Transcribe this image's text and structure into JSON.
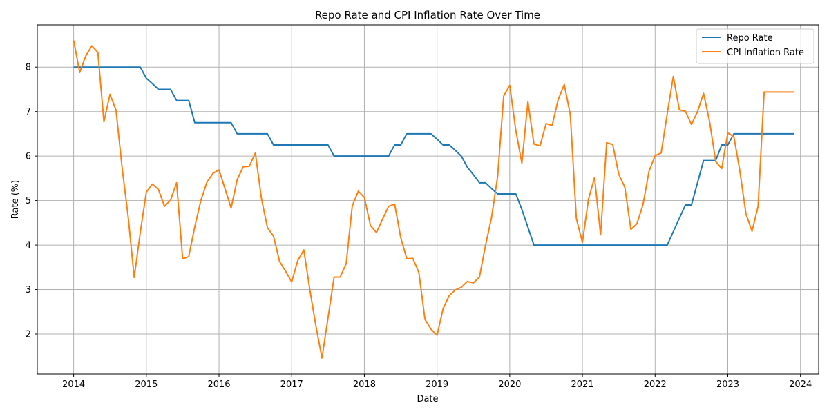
{
  "chart_data": {
    "type": "line",
    "title": "Repo Rate and CPI Inflation Rate Over Time",
    "xlabel": "Date",
    "ylabel": "Rate (%)",
    "x_ticks": [
      "2014",
      "2015",
      "2016",
      "2017",
      "2018",
      "2019",
      "2020",
      "2021",
      "2022",
      "2023",
      "2024"
    ],
    "y_ticks": [
      "2",
      "3",
      "4",
      "5",
      "6",
      "7",
      "8"
    ],
    "xlim": [
      "2013-07",
      "2024-04"
    ],
    "ylim": [
      1.1,
      8.95
    ],
    "grid": true,
    "legend_position": "top-right",
    "colors": {
      "repo": "#1f77b4",
      "cpi": "#ff7f0e",
      "grid": "#b0b0b0",
      "frame": "#000000"
    },
    "x": [
      "2014-01",
      "2014-02",
      "2014-03",
      "2014-04",
      "2014-05",
      "2014-06",
      "2014-07",
      "2014-08",
      "2014-09",
      "2014-10",
      "2014-11",
      "2014-12",
      "2015-01",
      "2015-02",
      "2015-03",
      "2015-04",
      "2015-05",
      "2015-06",
      "2015-07",
      "2015-08",
      "2015-09",
      "2015-10",
      "2015-11",
      "2015-12",
      "2016-01",
      "2016-02",
      "2016-03",
      "2016-04",
      "2016-05",
      "2016-06",
      "2016-07",
      "2016-08",
      "2016-09",
      "2016-10",
      "2016-11",
      "2016-12",
      "2017-01",
      "2017-02",
      "2017-03",
      "2017-04",
      "2017-05",
      "2017-06",
      "2017-07",
      "2017-08",
      "2017-09",
      "2017-10",
      "2017-11",
      "2017-12",
      "2018-01",
      "2018-02",
      "2018-03",
      "2018-04",
      "2018-05",
      "2018-06",
      "2018-07",
      "2018-08",
      "2018-09",
      "2018-10",
      "2018-11",
      "2018-12",
      "2019-01",
      "2019-02",
      "2019-03",
      "2019-04",
      "2019-05",
      "2019-06",
      "2019-07",
      "2019-08",
      "2019-09",
      "2019-10",
      "2019-11",
      "2019-12",
      "2020-01",
      "2020-02",
      "2020-03",
      "2020-04",
      "2020-05",
      "2020-06",
      "2020-07",
      "2020-08",
      "2020-09",
      "2020-10",
      "2020-11",
      "2020-12",
      "2021-01",
      "2021-02",
      "2021-03",
      "2021-04",
      "2021-05",
      "2021-06",
      "2021-07",
      "2021-08",
      "2021-09",
      "2021-10",
      "2021-11",
      "2021-12",
      "2022-01",
      "2022-02",
      "2022-03",
      "2022-04",
      "2022-05",
      "2022-06",
      "2022-07",
      "2022-08",
      "2022-09",
      "2022-10",
      "2022-11",
      "2022-12",
      "2023-01",
      "2023-02",
      "2023-03",
      "2023-04",
      "2023-05",
      "2023-06",
      "2023-07",
      "2023-08",
      "2023-09",
      "2023-10",
      "2023-11",
      "2023-12"
    ],
    "series": [
      {
        "name": "Repo Rate",
        "color": "#1f77b4",
        "values": [
          8.0,
          8.0,
          8.0,
          8.0,
          8.0,
          8.0,
          8.0,
          8.0,
          8.0,
          8.0,
          8.0,
          8.0,
          7.75,
          7.63,
          7.5,
          7.5,
          7.5,
          7.25,
          7.25,
          7.25,
          6.75,
          6.75,
          6.75,
          6.75,
          6.75,
          6.75,
          6.75,
          6.5,
          6.5,
          6.5,
          6.5,
          6.5,
          6.5,
          6.25,
          6.25,
          6.25,
          6.25,
          6.25,
          6.25,
          6.25,
          6.25,
          6.25,
          6.25,
          6.0,
          6.0,
          6.0,
          6.0,
          6.0,
          6.0,
          6.0,
          6.0,
          6.0,
          6.0,
          6.25,
          6.25,
          6.5,
          6.5,
          6.5,
          6.5,
          6.5,
          6.38,
          6.25,
          6.25,
          6.13,
          6.0,
          5.75,
          5.58,
          5.4,
          5.4,
          5.27,
          5.15,
          5.15,
          5.15,
          5.15,
          4.8,
          4.4,
          4.0,
          4.0,
          4.0,
          4.0,
          4.0,
          4.0,
          4.0,
          4.0,
          4.0,
          4.0,
          4.0,
          4.0,
          4.0,
          4.0,
          4.0,
          4.0,
          4.0,
          4.0,
          4.0,
          4.0,
          4.0,
          4.0,
          4.0,
          4.3,
          4.6,
          4.9,
          4.9,
          5.4,
          5.9,
          5.9,
          5.9,
          6.25,
          6.25,
          6.5,
          6.5,
          6.5,
          6.5,
          6.5,
          6.5,
          6.5,
          6.5,
          6.5,
          6.5,
          6.5
        ]
      },
      {
        "name": "CPI Inflation Rate",
        "color": "#ff7f0e",
        "values": [
          8.6,
          7.88,
          8.25,
          8.48,
          8.33,
          6.77,
          7.39,
          7.03,
          5.74,
          4.64,
          3.27,
          4.28,
          5.19,
          5.37,
          5.25,
          4.87,
          5.01,
          5.4,
          3.69,
          3.74,
          4.41,
          5.0,
          5.41,
          5.61,
          5.69,
          5.26,
          4.83,
          5.47,
          5.76,
          5.77,
          6.07,
          5.05,
          4.39,
          4.2,
          3.63,
          3.41,
          3.17,
          3.65,
          3.89,
          2.99,
          2.18,
          1.46,
          2.36,
          3.28,
          3.28,
          3.58,
          4.88,
          5.21,
          5.07,
          4.44,
          4.28,
          4.58,
          4.87,
          4.92,
          4.17,
          3.69,
          3.7,
          3.38,
          2.33,
          2.11,
          1.97,
          2.57,
          2.86,
          2.99,
          3.05,
          3.18,
          3.15,
          3.28,
          3.99,
          4.62,
          5.54,
          7.35,
          7.59,
          6.58,
          5.84,
          7.22,
          6.27,
          6.23,
          6.73,
          6.69,
          7.27,
          7.61,
          6.93,
          4.59,
          4.06,
          5.03,
          5.52,
          4.23,
          6.3,
          6.26,
          5.59,
          5.3,
          4.35,
          4.48,
          4.91,
          5.66,
          6.01,
          6.07,
          6.95,
          7.79,
          7.04,
          7.01,
          6.71,
          7.0,
          7.41,
          6.77,
          5.88,
          5.72,
          6.52,
          6.44,
          5.66,
          4.7,
          4.31,
          4.87,
          7.44,
          7.44,
          7.44,
          7.44,
          7.44,
          7.44
        ]
      }
    ]
  }
}
